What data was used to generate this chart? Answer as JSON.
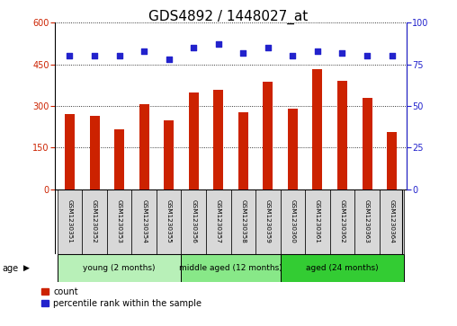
{
  "title": "GDS4892 / 1448027_at",
  "samples": [
    "GSM1230351",
    "GSM1230352",
    "GSM1230353",
    "GSM1230354",
    "GSM1230355",
    "GSM1230356",
    "GSM1230357",
    "GSM1230358",
    "GSM1230359",
    "GSM1230360",
    "GSM1230361",
    "GSM1230362",
    "GSM1230363",
    "GSM1230364"
  ],
  "counts": [
    270,
    263,
    215,
    308,
    248,
    348,
    358,
    278,
    388,
    290,
    432,
    392,
    328,
    205
  ],
  "percentiles": [
    80,
    80,
    80,
    83,
    78,
    85,
    87,
    82,
    85,
    80,
    83,
    82,
    80,
    80
  ],
  "bar_color": "#cc2200",
  "dot_color": "#2222cc",
  "ylim_left": [
    0,
    600
  ],
  "ylim_right": [
    0,
    100
  ],
  "yticks_left": [
    0,
    150,
    300,
    450,
    600
  ],
  "yticks_right": [
    0,
    25,
    50,
    75,
    100
  ],
  "groups": [
    {
      "label": "young (2 months)",
      "start": 0,
      "end": 5,
      "color": "#b8f0b8"
    },
    {
      "label": "middle aged (12 months)",
      "start": 5,
      "end": 9,
      "color": "#88e888"
    },
    {
      "label": "aged (24 months)",
      "start": 9,
      "end": 14,
      "color": "#33cc33"
    }
  ],
  "age_label": "age",
  "legend_count_label": "count",
  "legend_pct_label": "percentile rank within the sample",
  "title_fontsize": 11,
  "tick_fontsize": 7,
  "sample_fontsize": 5.2,
  "group_fontsize": 6.5,
  "legend_fontsize": 7
}
